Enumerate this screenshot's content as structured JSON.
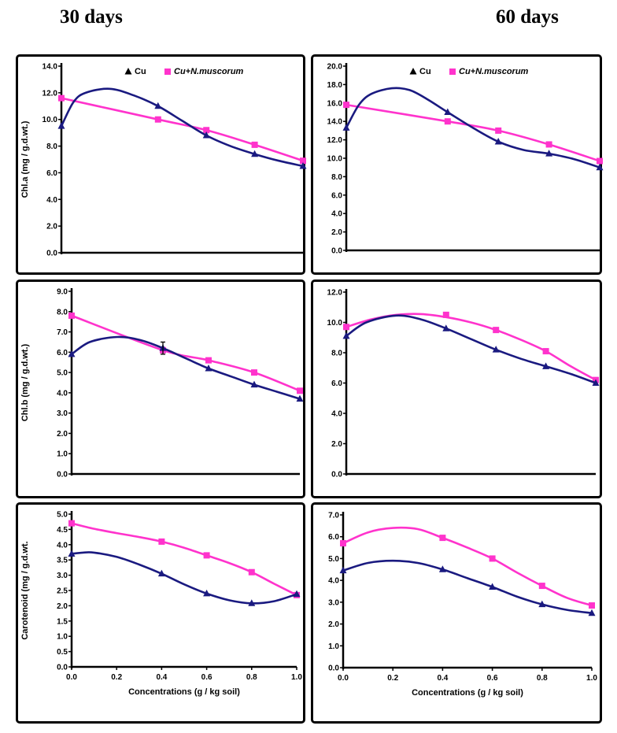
{
  "headings": {
    "left": "30 days",
    "right": "60 days"
  },
  "colors": {
    "cu": "#1a1a80",
    "cu_nm": "#ff33cc",
    "axis": "#000000"
  },
  "legend": {
    "cu": "Cu",
    "cu_nm": "Cu+N.muscorum"
  },
  "chart_data": [
    {
      "type": "line",
      "id": "chla-30",
      "x": [
        0,
        0.4,
        0.6,
        0.8,
        1.0
      ],
      "ylabel": "Chl.a (mg / g.d.wt.)",
      "xlabel": "",
      "ylim": [
        0,
        14
      ],
      "ystep": 2,
      "ydec": 1,
      "xlim": [
        0,
        1
      ],
      "xticks": [],
      "legend": true,
      "series": [
        {
          "name": "Cu",
          "values": [
            9.5,
            11.0,
            8.8,
            7.4,
            6.5
          ],
          "curve": [
            [
              0,
              9.5
            ],
            [
              0.05,
              11.3
            ],
            [
              0.1,
              12.0
            ],
            [
              0.2,
              12.3
            ],
            [
              0.3,
              11.8
            ],
            [
              0.4,
              11.0
            ],
            [
              0.5,
              9.9
            ],
            [
              0.6,
              8.8
            ],
            [
              0.7,
              8.0
            ],
            [
              0.8,
              7.4
            ],
            [
              0.9,
              6.9
            ],
            [
              1.0,
              6.5
            ]
          ]
        },
        {
          "name": "Cu+N.muscorum",
          "values": [
            11.6,
            10.0,
            9.2,
            8.1,
            6.9
          ]
        }
      ]
    },
    {
      "type": "line",
      "id": "chla-60",
      "x": [
        0,
        0.4,
        0.6,
        0.8,
        1.0
      ],
      "ylabel": "",
      "xlabel": "",
      "ylim": [
        0,
        20
      ],
      "ystep": 2,
      "ydec": 1,
      "xlim": [
        0,
        1
      ],
      "xticks": [],
      "legend": true,
      "series": [
        {
          "name": "Cu",
          "values": [
            13.3,
            15.0,
            11.8,
            10.5,
            9.0
          ],
          "curve": [
            [
              0,
              13.3
            ],
            [
              0.05,
              15.8
            ],
            [
              0.1,
              17.0
            ],
            [
              0.18,
              17.6
            ],
            [
              0.25,
              17.4
            ],
            [
              0.32,
              16.4
            ],
            [
              0.4,
              15.0
            ],
            [
              0.5,
              13.3
            ],
            [
              0.6,
              11.8
            ],
            [
              0.7,
              10.9
            ],
            [
              0.8,
              10.5
            ],
            [
              0.9,
              9.9
            ],
            [
              1.0,
              9.0
            ]
          ]
        },
        {
          "name": "Cu+N.muscorum",
          "values": [
            15.8,
            14.0,
            13.0,
            11.5,
            9.7
          ]
        }
      ]
    },
    {
      "type": "line",
      "id": "chlb-30",
      "x": [
        0,
        0.4,
        0.6,
        0.8,
        1.0
      ],
      "ylabel": "Chl.b (mg / g.d.wt.)",
      "xlabel": "",
      "ylim": [
        0,
        9
      ],
      "ystep": 1,
      "ydec": 1,
      "xlim": [
        0,
        1
      ],
      "xticks": [],
      "legend": false,
      "errorbar": {
        "x": 0.4,
        "value": 6.2,
        "err": 0.3
      },
      "series": [
        {
          "name": "Cu",
          "values": [
            5.9,
            6.2,
            5.2,
            4.4,
            3.7
          ],
          "curve": [
            [
              0,
              5.9
            ],
            [
              0.08,
              6.5
            ],
            [
              0.2,
              6.75
            ],
            [
              0.3,
              6.6
            ],
            [
              0.4,
              6.2
            ],
            [
              0.5,
              5.7
            ],
            [
              0.6,
              5.2
            ],
            [
              0.7,
              4.8
            ],
            [
              0.8,
              4.4
            ],
            [
              0.9,
              4.05
            ],
            [
              1.0,
              3.7
            ]
          ]
        },
        {
          "name": "Cu+N.muscorum",
          "values": [
            7.8,
            6.1,
            5.6,
            5.0,
            4.1
          ]
        }
      ]
    },
    {
      "type": "line",
      "id": "chlb-60",
      "x": [
        0,
        0.4,
        0.6,
        0.8,
        1.0
      ],
      "ylabel": "",
      "xlabel": "",
      "ylim": [
        0,
        12
      ],
      "ystep": 2,
      "ydec": 1,
      "xlim": [
        0,
        1
      ],
      "xticks": [],
      "legend": false,
      "series": [
        {
          "name": "Cu",
          "values": [
            9.1,
            9.6,
            8.2,
            7.1,
            6.0
          ],
          "curve": [
            [
              0,
              9.1
            ],
            [
              0.08,
              10.0
            ],
            [
              0.2,
              10.45
            ],
            [
              0.3,
              10.2
            ],
            [
              0.4,
              9.6
            ],
            [
              0.5,
              8.9
            ],
            [
              0.6,
              8.2
            ],
            [
              0.7,
              7.6
            ],
            [
              0.8,
              7.1
            ],
            [
              0.9,
              6.6
            ],
            [
              1.0,
              6.0
            ]
          ]
        },
        {
          "name": "Cu+N.muscorum",
          "values": [
            9.7,
            10.5,
            9.5,
            8.1,
            6.2
          ],
          "curve": [
            [
              0,
              9.7
            ],
            [
              0.1,
              10.2
            ],
            [
              0.2,
              10.5
            ],
            [
              0.3,
              10.55
            ],
            [
              0.4,
              10.35
            ],
            [
              0.5,
              10.0
            ],
            [
              0.6,
              9.5
            ],
            [
              0.7,
              8.85
            ],
            [
              0.8,
              8.1
            ],
            [
              0.9,
              7.1
            ],
            [
              1.0,
              6.2
            ]
          ]
        }
      ]
    },
    {
      "type": "line",
      "id": "car-30",
      "x": [
        0,
        0.4,
        0.6,
        0.8,
        1.0
      ],
      "ylabel": "Carotenoid (mg / g.d.wt.",
      "xlabel": "Concentrations (g / kg soil)",
      "ylim": [
        0,
        5
      ],
      "ystep": 0.5,
      "ydec": 1,
      "xlim": [
        0,
        1
      ],
      "xticks": [
        "0.0",
        "0.2",
        "0.4",
        "0.6",
        "0.8",
        "1.0"
      ],
      "legend": false,
      "series": [
        {
          "name": "Cu",
          "values": [
            3.7,
            3.05,
            2.4,
            2.08,
            2.38
          ],
          "curve": [
            [
              0,
              3.7
            ],
            [
              0.05,
              3.74
            ],
            [
              0.1,
              3.74
            ],
            [
              0.2,
              3.6
            ],
            [
              0.3,
              3.35
            ],
            [
              0.4,
              3.05
            ],
            [
              0.5,
              2.7
            ],
            [
              0.6,
              2.4
            ],
            [
              0.7,
              2.18
            ],
            [
              0.8,
              2.08
            ],
            [
              0.9,
              2.15
            ],
            [
              1.0,
              2.38
            ]
          ]
        },
        {
          "name": "Cu+N.muscorum",
          "values": [
            4.7,
            4.1,
            3.65,
            3.1,
            2.35
          ],
          "curve": [
            [
              0,
              4.7
            ],
            [
              0.1,
              4.52
            ],
            [
              0.2,
              4.38
            ],
            [
              0.3,
              4.25
            ],
            [
              0.4,
              4.1
            ],
            [
              0.5,
              3.9
            ],
            [
              0.6,
              3.65
            ],
            [
              0.7,
              3.4
            ],
            [
              0.8,
              3.1
            ],
            [
              0.9,
              2.72
            ],
            [
              1.0,
              2.35
            ]
          ]
        }
      ]
    },
    {
      "type": "line",
      "id": "car-60",
      "x": [
        0,
        0.4,
        0.6,
        0.8,
        1.0
      ],
      "ylabel": "",
      "xlabel": "Concentrations (g / kg soil)",
      "ylim": [
        0,
        7
      ],
      "ystep": 1,
      "ydec": 1,
      "xlim": [
        0,
        1
      ],
      "xticks": [
        "0.0",
        "0.2",
        "0.4",
        "0.6",
        "0.8",
        "1.0"
      ],
      "legend": false,
      "series": [
        {
          "name": "Cu",
          "values": [
            4.45,
            4.5,
            3.7,
            2.9,
            2.5
          ],
          "curve": [
            [
              0,
              4.45
            ],
            [
              0.1,
              4.8
            ],
            [
              0.2,
              4.9
            ],
            [
              0.3,
              4.8
            ],
            [
              0.4,
              4.5
            ],
            [
              0.5,
              4.1
            ],
            [
              0.6,
              3.7
            ],
            [
              0.7,
              3.25
            ],
            [
              0.8,
              2.9
            ],
            [
              0.9,
              2.65
            ],
            [
              1.0,
              2.5
            ]
          ]
        },
        {
          "name": "Cu+N.muscorum",
          "values": [
            5.7,
            5.95,
            5.0,
            3.75,
            2.85
          ],
          "curve": [
            [
              0,
              5.7
            ],
            [
              0.1,
              6.2
            ],
            [
              0.2,
              6.4
            ],
            [
              0.3,
              6.35
            ],
            [
              0.4,
              5.95
            ],
            [
              0.5,
              5.5
            ],
            [
              0.6,
              5.0
            ],
            [
              0.7,
              4.35
            ],
            [
              0.8,
              3.75
            ],
            [
              0.9,
              3.2
            ],
            [
              1.0,
              2.85
            ]
          ]
        }
      ]
    }
  ]
}
